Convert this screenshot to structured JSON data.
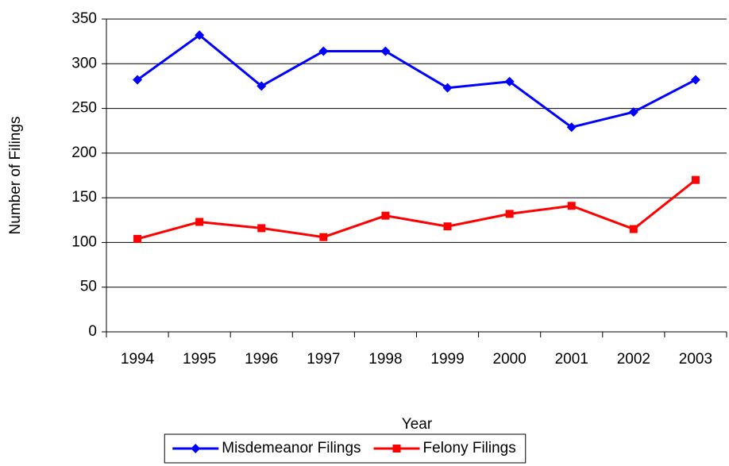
{
  "chart_data": {
    "type": "line",
    "x_label": "Year",
    "y_label": "Number of Filings",
    "categories": [
      "1994",
      "1995",
      "1996",
      "1997",
      "1998",
      "1999",
      "2000",
      "2001",
      "2002",
      "2003"
    ],
    "series": [
      {
        "name": "Misdemeanor Filings",
        "color": "#0000ff",
        "marker": "diamond",
        "values": [
          282,
          332,
          275,
          314,
          314,
          273,
          280,
          229,
          246,
          282
        ]
      },
      {
        "name": "Felony Filings",
        "color": "#ff0000",
        "marker": "square",
        "values": [
          104,
          123,
          116,
          106,
          130,
          118,
          132,
          141,
          115,
          170
        ]
      }
    ],
    "ylim": [
      0,
      350
    ],
    "yticks": [
      0,
      50,
      100,
      150,
      200,
      250,
      300,
      350
    ],
    "grid": true,
    "legend": "bottom"
  }
}
